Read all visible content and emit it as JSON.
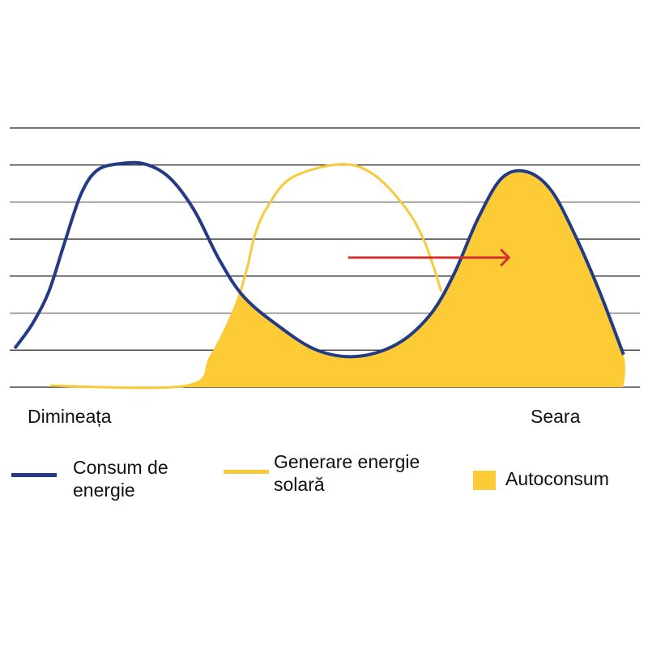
{
  "chart_data": {
    "type": "area",
    "title": "",
    "xlabel": "",
    "ylabel": "",
    "xlim": [
      0,
      100
    ],
    "ylim": [
      0,
      7
    ],
    "grid": true,
    "x_tick_labels": {
      "start": "Dimineața",
      "end": "Seara"
    },
    "series": [
      {
        "name": "Consum de energie",
        "kind": "line",
        "color": "#233a85",
        "points": [
          [
            0.8,
            1.05
          ],
          [
            3.6,
            1.71
          ],
          [
            6.2,
            2.58
          ],
          [
            8.7,
            3.9
          ],
          [
            11.3,
            5.21
          ],
          [
            13.9,
            5.86
          ],
          [
            17.7,
            6.04
          ],
          [
            21.6,
            6.02
          ],
          [
            25.4,
            5.65
          ],
          [
            29.3,
            4.77
          ],
          [
            33.2,
            3.46
          ],
          [
            37.0,
            2.47
          ],
          [
            42.2,
            1.71
          ],
          [
            48.6,
            1.01
          ],
          [
            55.0,
            0.83
          ],
          [
            61.4,
            1.16
          ],
          [
            66.6,
            1.93
          ],
          [
            70.4,
            3.02
          ],
          [
            74.3,
            4.55
          ],
          [
            78.1,
            5.65
          ],
          [
            82.0,
            5.82
          ],
          [
            85.9,
            5.32
          ],
          [
            89.7,
            4.11
          ],
          [
            93.6,
            2.58
          ],
          [
            97.4,
            0.88
          ]
        ]
      },
      {
        "name": "Generare energie solară",
        "kind": "line",
        "color": "#f7ca3c",
        "points": [
          [
            6.4,
            0.04
          ],
          [
            28.0,
            0.04
          ],
          [
            31.9,
            0.83
          ],
          [
            35.7,
            2.14
          ],
          [
            37.7,
            3.24
          ],
          [
            38.9,
            4.11
          ],
          [
            40.9,
            4.87
          ],
          [
            44.7,
            5.65
          ],
          [
            52.4,
            6.02
          ],
          [
            57.6,
            5.76
          ],
          [
            62.7,
            4.87
          ],
          [
            65.9,
            3.9
          ],
          [
            68.5,
            2.58
          ]
        ]
      },
      {
        "name": "Autoconsum",
        "kind": "area",
        "color": "#fdcb35",
        "points": [
          [
            6.4,
            0.0
          ],
          [
            28.0,
            0.04
          ],
          [
            31.9,
            0.83
          ],
          [
            35.7,
            2.14
          ],
          [
            37.0,
            2.47
          ],
          [
            42.2,
            1.71
          ],
          [
            48.6,
            1.01
          ],
          [
            55.0,
            0.83
          ],
          [
            61.4,
            1.16
          ],
          [
            66.6,
            1.93
          ],
          [
            70.4,
            3.02
          ],
          [
            74.3,
            4.55
          ],
          [
            78.1,
            5.65
          ],
          [
            82.0,
            5.82
          ],
          [
            85.9,
            5.32
          ],
          [
            89.7,
            4.11
          ],
          [
            93.6,
            2.58
          ],
          [
            97.4,
            0.88
          ],
          [
            97.4,
            0.0
          ]
        ]
      }
    ],
    "annotations": [
      {
        "type": "arrow",
        "color": "#d0312d",
        "from": [
          53.7,
          3.5
        ],
        "to": [
          79.2,
          3.5
        ]
      }
    ],
    "legend": {
      "placement": "bottom",
      "items": [
        {
          "label_line1": "Consum de",
          "label_line2": "energie"
        },
        {
          "label_line1": "Generare energie",
          "label_line2": "solară"
        },
        {
          "label_line1": "Autoconsum"
        }
      ]
    }
  }
}
